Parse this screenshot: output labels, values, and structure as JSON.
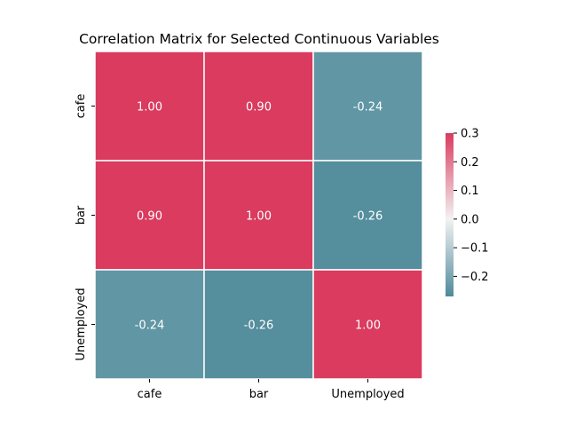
{
  "chart_data": {
    "type": "heatmap",
    "title": "Correlation Matrix for Selected Continuous Variables",
    "x_categories": [
      "cafe",
      "bar",
      "Unemployed"
    ],
    "y_categories": [
      "cafe",
      "bar",
      "Unemployed"
    ],
    "values": [
      [
        1.0,
        0.9,
        -0.24
      ],
      [
        0.9,
        1.0,
        -0.26
      ],
      [
        -0.24,
        -0.26,
        1.0
      ]
    ],
    "cell_labels": [
      [
        "1.00",
        "0.90",
        "-0.24"
      ],
      [
        "0.90",
        "1.00",
        "-0.26"
      ],
      [
        "-0.24",
        "-0.26",
        "1.00"
      ]
    ],
    "colorbar": {
      "vmin": -0.27,
      "vmax": 0.3,
      "ticks": [
        0.3,
        0.2,
        0.1,
        0.0,
        -0.1,
        -0.2
      ],
      "tick_labels": [
        "0.3",
        "0.2",
        "0.1",
        "0.0",
        "−0.1",
        "−0.2"
      ]
    },
    "colors": {
      "negative": "#4f8a9a",
      "center": "#f2f2f2",
      "positive": "#da3b5e",
      "grid_line": "#ffffff"
    }
  }
}
